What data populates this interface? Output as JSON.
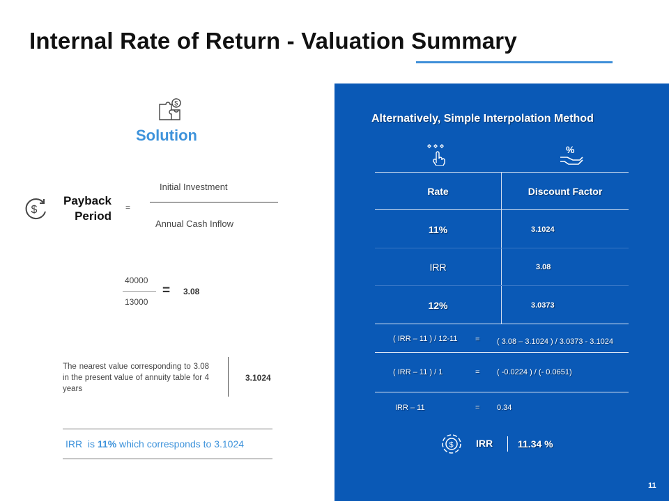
{
  "title": "Internal Rate of Return - Valuation Summary",
  "accent_color": "#3e93db",
  "panel_color": "#0a59b6",
  "left": {
    "solution_icon": "puzzle-dollar-icon",
    "solution_label": "Solution",
    "payback_icon": "dollar-cycle-icon",
    "payback_line1": "Payback",
    "payback_line2": "Period",
    "equals": "=",
    "numerator": "Initial Investment",
    "denominator": "Annual Cash Inflow",
    "calc_numerator": "40000",
    "calc_denominator": "13000",
    "calc_equals": "=",
    "calc_result": "3.08",
    "nearest_text": "The nearest value corresponding to 3.08 in the present value of annuity table for 4 years",
    "nearest_value": "3.1024",
    "irr_prefix": "IRR  is ",
    "irr_pct": "11%",
    "irr_suffix": " which corresponds to 3.1024"
  },
  "right": {
    "title": "Alternatively, Simple Interpolation Method",
    "hand_icon": "hand-stars-icon",
    "percent_icon": "hand-percent-icon",
    "table": {
      "headers": [
        "Rate",
        "Discount Factor"
      ],
      "rows": [
        {
          "rate": "11%",
          "factor": "3.1024"
        },
        {
          "rate": "IRR",
          "factor": "3.08"
        },
        {
          "rate": "12%",
          "factor": "3.0373"
        }
      ]
    },
    "calc": [
      {
        "lhs": "( IRR – 11 ) / 12-11",
        "eq": "=",
        "rhs": "( 3.08 – 3.1024 ) / 3.0373 - 3.1024"
      },
      {
        "lhs": "( IRR – 11 ) / 1",
        "eq": "=",
        "rhs": "( -0.0224 ) / (- 0.0651)"
      },
      {
        "lhs": "IRR – 11",
        "eq": "=",
        "rhs": "0.34"
      }
    ],
    "irr_icon": "money-target-icon",
    "irr_label": "IRR",
    "irr_value": "11.34 %"
  },
  "page_number": "11"
}
